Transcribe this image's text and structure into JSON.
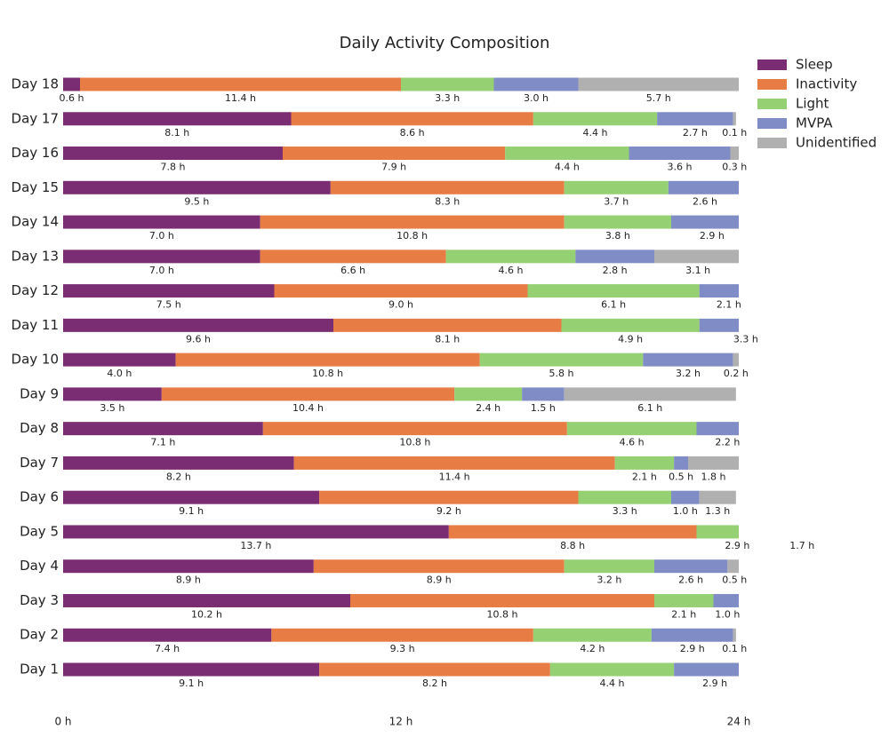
{
  "chart_data": {
    "type": "stacked-barh",
    "title": "Daily Activity Composition",
    "categories": [
      "Day 1",
      "Day 2",
      "Day 3",
      "Day 4",
      "Day 5",
      "Day 6",
      "Day 7",
      "Day 8",
      "Day 9",
      "Day 10",
      "Day 11",
      "Day 12",
      "Day 13",
      "Day 14",
      "Day 15",
      "Day 16",
      "Day 17",
      "Day 18"
    ],
    "series": [
      {
        "name": "Sleep",
        "color": "#7b2d73",
        "values": [
          9.1,
          7.4,
          10.2,
          8.9,
          13.7,
          9.1,
          8.2,
          7.1,
          3.5,
          4.0,
          9.6,
          7.5,
          7.0,
          7.0,
          9.5,
          7.8,
          8.1,
          0.6
        ],
        "value_labels": [
          "9.1 h",
          "7.4 h",
          "10.2 h",
          "8.9 h",
          "13.7 h",
          "9.1 h",
          "8.2 h",
          "7.1 h",
          "3.5 h",
          "4.0 h",
          "9.6 h",
          "7.5 h",
          "7.0 h",
          "7.0 h",
          "9.5 h",
          "7.8 h",
          "8.1 h",
          "0.6 h"
        ]
      },
      {
        "name": "Inactivity",
        "color": "#e87c45",
        "values": [
          8.2,
          9.3,
          10.8,
          8.9,
          8.8,
          9.2,
          11.4,
          10.8,
          10.4,
          10.8,
          8.1,
          9.0,
          6.6,
          10.8,
          8.3,
          7.9,
          8.6,
          11.4
        ],
        "value_labels": [
          "8.2 h",
          "9.3 h",
          "10.8 h",
          "8.9 h",
          "8.8 h",
          "9.2 h",
          "11.4 h",
          "10.8 h",
          "10.4 h",
          "10.8 h",
          "8.1 h",
          "9.0 h",
          "6.6 h",
          "10.8 h",
          "8.3 h",
          "7.9 h",
          "8.6 h",
          "11.4 h"
        ]
      },
      {
        "name": "Light",
        "color": "#95d072",
        "values": [
          4.4,
          4.2,
          2.1,
          3.2,
          2.9,
          3.3,
          2.1,
          4.6,
          2.4,
          5.8,
          4.9,
          6.1,
          4.6,
          3.8,
          3.7,
          4.4,
          4.4,
          3.3
        ],
        "value_labels": [
          "4.4 h",
          "4.2 h",
          "2.1 h",
          "3.2 h",
          "2.9 h",
          "3.3 h",
          "2.1 h",
          "4.6 h",
          "2.4 h",
          "5.8 h",
          "4.9 h",
          "6.1 h",
          "4.6 h",
          "3.8 h",
          "3.7 h",
          "4.4 h",
          "4.4 h",
          "3.3 h"
        ]
      },
      {
        "name": "MVPA",
        "color": "#7f8cc6",
        "values": [
          2.9,
          2.9,
          1.0,
          2.6,
          1.7,
          1.0,
          0.5,
          2.2,
          1.5,
          3.2,
          3.3,
          2.1,
          2.8,
          2.9,
          2.6,
          3.6,
          2.7,
          3.0
        ],
        "value_labels": [
          "2.9 h",
          "2.9 h",
          "1.0 h",
          "2.6 h",
          "1.7 h",
          "1.0 h",
          "0.5 h",
          "2.2 h",
          "1.5 h",
          "3.2 h",
          "3.3 h",
          "2.1 h",
          "2.8 h",
          "2.9 h",
          "2.6 h",
          "3.6 h",
          "2.7 h",
          "3.0 h"
        ]
      },
      {
        "name": "Unidentified",
        "color": "#b0b0b0",
        "values": [
          null,
          0.1,
          null,
          0.5,
          null,
          1.3,
          1.8,
          null,
          6.1,
          0.2,
          null,
          null,
          3.1,
          null,
          null,
          0.3,
          0.1,
          5.7
        ],
        "value_labels": [
          null,
          "0.1 h",
          null,
          "0.5 h",
          null,
          "1.3 h",
          "1.8 h",
          null,
          "6.1 h",
          "0.2 h",
          null,
          null,
          "3.1 h",
          null,
          null,
          "0.3 h",
          "0.1 h",
          "5.7 h"
        ]
      }
    ],
    "xlim": [
      0,
      24
    ],
    "xticks": [
      {
        "value": 0,
        "label": "0 h"
      },
      {
        "value": 12,
        "label": "12 h"
      },
      {
        "value": 24,
        "label": "24 h"
      }
    ],
    "legend": "upper right"
  }
}
